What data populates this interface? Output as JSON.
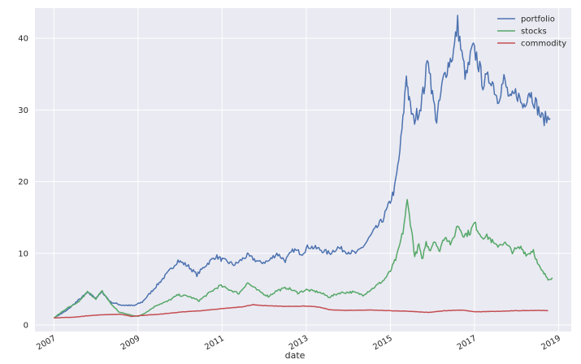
{
  "chart_data": {
    "type": "line",
    "title": "",
    "xlabel": "date",
    "ylabel": "",
    "xlim": [
      2006.55,
      2019.3
    ],
    "ylim": [
      -0.9,
      44.2
    ],
    "x_ticks": [
      2007,
      2009,
      2011,
      2013,
      2015,
      2017,
      2019
    ],
    "x_tick_labels": [
      "2007",
      "2009",
      "2011",
      "2013",
      "2015",
      "2017",
      "2019"
    ],
    "y_ticks": [
      0,
      10,
      20,
      30,
      40
    ],
    "y_tick_labels": [
      "0",
      "10",
      "20",
      "30",
      "40"
    ],
    "grid": true,
    "legend_position": "top-right",
    "colors": {
      "plot_bg": "#EAEAF2",
      "grid": "#FFFFFF",
      "text": "#262626"
    },
    "series": [
      {
        "name": "portfolio",
        "color": "#4C72B0",
        "points": [
          [
            2007.0,
            1.0
          ],
          [
            2007.3,
            2.0
          ],
          [
            2007.55,
            3.3
          ],
          [
            2007.8,
            4.5
          ],
          [
            2008.0,
            3.8
          ],
          [
            2008.15,
            4.6
          ],
          [
            2008.35,
            3.2
          ],
          [
            2008.6,
            2.8
          ],
          [
            2008.9,
            2.7
          ],
          [
            2009.1,
            3.2
          ],
          [
            2009.4,
            5.2
          ],
          [
            2009.7,
            7.2
          ],
          [
            2009.95,
            9.0
          ],
          [
            2010.2,
            8.2
          ],
          [
            2010.4,
            7.0
          ],
          [
            2010.6,
            8.3
          ],
          [
            2010.85,
            9.6
          ],
          [
            2011.0,
            9.1
          ],
          [
            2011.3,
            8.4
          ],
          [
            2011.6,
            9.7
          ],
          [
            2011.9,
            8.7
          ],
          [
            2012.1,
            8.9
          ],
          [
            2012.3,
            10.0
          ],
          [
            2012.5,
            9.0
          ],
          [
            2012.7,
            10.5
          ],
          [
            2012.9,
            10.0
          ],
          [
            2013.05,
            11.0
          ],
          [
            2013.3,
            10.6
          ],
          [
            2013.55,
            10.0
          ],
          [
            2013.75,
            10.8
          ],
          [
            2013.95,
            10.3
          ],
          [
            2014.2,
            10.0
          ],
          [
            2014.4,
            11.3
          ],
          [
            2014.6,
            13.0
          ],
          [
            2014.8,
            14.5
          ],
          [
            2014.95,
            16.5
          ],
          [
            2015.1,
            19.0
          ],
          [
            2015.2,
            23.0
          ],
          [
            2015.3,
            28.5
          ],
          [
            2015.38,
            35.0
          ],
          [
            2015.45,
            31.0
          ],
          [
            2015.55,
            28.5
          ],
          [
            2015.7,
            30.2
          ],
          [
            2015.8,
            33.0
          ],
          [
            2015.9,
            37.5
          ],
          [
            2016.0,
            32.0
          ],
          [
            2016.1,
            28.5
          ],
          [
            2016.25,
            34.0
          ],
          [
            2016.35,
            36.0
          ],
          [
            2016.5,
            38.0
          ],
          [
            2016.6,
            42.0
          ],
          [
            2016.7,
            37.5
          ],
          [
            2016.8,
            34.5
          ],
          [
            2016.95,
            38.5
          ],
          [
            2017.05,
            37.5
          ],
          [
            2017.2,
            33.8
          ],
          [
            2017.4,
            34.5
          ],
          [
            2017.55,
            31.5
          ],
          [
            2017.7,
            34.2
          ],
          [
            2017.85,
            31.2
          ],
          [
            2018.0,
            32.5
          ],
          [
            2018.15,
            30.5
          ],
          [
            2018.3,
            32.7
          ],
          [
            2018.45,
            31.0
          ],
          [
            2018.6,
            28.8
          ],
          [
            2018.8,
            28.8
          ]
        ]
      },
      {
        "name": "stocks",
        "color": "#55A868",
        "points": [
          [
            2007.0,
            1.0
          ],
          [
            2007.3,
            2.3
          ],
          [
            2007.55,
            3.0
          ],
          [
            2007.8,
            4.6
          ],
          [
            2008.0,
            3.7
          ],
          [
            2008.15,
            4.7
          ],
          [
            2008.35,
            3.0
          ],
          [
            2008.55,
            1.8
          ],
          [
            2008.75,
            1.5
          ],
          [
            2009.0,
            1.2
          ],
          [
            2009.2,
            1.8
          ],
          [
            2009.45,
            2.8
          ],
          [
            2009.7,
            3.3
          ],
          [
            2009.95,
            4.2
          ],
          [
            2010.2,
            4.0
          ],
          [
            2010.45,
            3.4
          ],
          [
            2010.7,
            4.5
          ],
          [
            2010.95,
            5.5
          ],
          [
            2011.15,
            5.0
          ],
          [
            2011.4,
            4.4
          ],
          [
            2011.6,
            5.9
          ],
          [
            2011.85,
            4.8
          ],
          [
            2012.1,
            4.0
          ],
          [
            2012.3,
            4.8
          ],
          [
            2012.55,
            5.2
          ],
          [
            2012.8,
            4.5
          ],
          [
            2013.0,
            4.9
          ],
          [
            2013.3,
            4.6
          ],
          [
            2013.55,
            3.9
          ],
          [
            2013.8,
            4.5
          ],
          [
            2014.1,
            4.6
          ],
          [
            2014.35,
            4.2
          ],
          [
            2014.6,
            5.2
          ],
          [
            2014.85,
            6.3
          ],
          [
            2015.0,
            7.5
          ],
          [
            2015.15,
            9.5
          ],
          [
            2015.3,
            13.0
          ],
          [
            2015.4,
            17.2
          ],
          [
            2015.5,
            13.5
          ],
          [
            2015.58,
            9.5
          ],
          [
            2015.68,
            11.2
          ],
          [
            2015.75,
            9.0
          ],
          [
            2015.85,
            11.5
          ],
          [
            2015.95,
            10.5
          ],
          [
            2016.05,
            12.0
          ],
          [
            2016.15,
            10.2
          ],
          [
            2016.3,
            12.5
          ],
          [
            2016.45,
            11.2
          ],
          [
            2016.6,
            14.0
          ],
          [
            2016.75,
            12.5
          ],
          [
            2016.9,
            13.0
          ],
          [
            2017.0,
            14.2
          ],
          [
            2017.15,
            12.5
          ],
          [
            2017.35,
            12.2
          ],
          [
            2017.5,
            11.0
          ],
          [
            2017.7,
            11.5
          ],
          [
            2017.9,
            10.3
          ],
          [
            2018.1,
            10.8
          ],
          [
            2018.25,
            9.8
          ],
          [
            2018.4,
            10.5
          ],
          [
            2018.5,
            8.5
          ],
          [
            2018.6,
            7.5
          ],
          [
            2018.75,
            6.5
          ],
          [
            2018.85,
            6.6
          ]
        ]
      },
      {
        "name": "commodity",
        "color": "#C44E52",
        "points": [
          [
            2007.0,
            1.0
          ],
          [
            2007.5,
            1.1
          ],
          [
            2007.8,
            1.3
          ],
          [
            2008.2,
            1.45
          ],
          [
            2008.6,
            1.5
          ],
          [
            2008.85,
            1.2
          ],
          [
            2009.1,
            1.35
          ],
          [
            2009.5,
            1.5
          ],
          [
            2010.0,
            1.8
          ],
          [
            2010.5,
            2.0
          ],
          [
            2011.0,
            2.3
          ],
          [
            2011.5,
            2.55
          ],
          [
            2011.75,
            2.85
          ],
          [
            2012.0,
            2.7
          ],
          [
            2012.5,
            2.6
          ],
          [
            2013.0,
            2.65
          ],
          [
            2013.3,
            2.5
          ],
          [
            2013.6,
            2.1
          ],
          [
            2014.0,
            2.05
          ],
          [
            2014.5,
            2.1
          ],
          [
            2015.0,
            2.0
          ],
          [
            2015.5,
            1.9
          ],
          [
            2015.9,
            1.75
          ],
          [
            2016.3,
            2.0
          ],
          [
            2016.7,
            2.1
          ],
          [
            2017.0,
            1.85
          ],
          [
            2017.5,
            1.9
          ],
          [
            2018.0,
            2.0
          ],
          [
            2018.5,
            2.05
          ],
          [
            2018.75,
            2.0
          ]
        ]
      }
    ]
  }
}
